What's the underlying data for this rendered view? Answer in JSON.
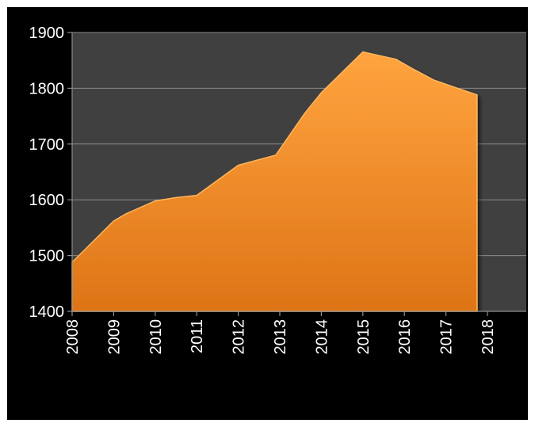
{
  "chart_data": {
    "type": "area",
    "title": "",
    "xlabel": "",
    "ylabel": "",
    "x_ticks": [
      "2008",
      "2009",
      "2010",
      "2011",
      "2012",
      "2013",
      "2014",
      "2015",
      "2016",
      "2017",
      "2018"
    ],
    "y_ticks": [
      "1400",
      "1500",
      "1600",
      "1700",
      "1800",
      "1900"
    ],
    "xlim": [
      2008,
      2018.7
    ],
    "ylim": [
      1400,
      1900
    ],
    "grid": true,
    "colors": {
      "area": "#f7922a",
      "plot_bg": "#404040",
      "background": "#000000",
      "grid": "#8c8c8c",
      "text": "#ffffff"
    },
    "series": [
      {
        "x": [
          2008.0,
          2009.0,
          2009.3,
          2010.0,
          2010.5,
          2011.0,
          2011.5,
          2012.0,
          2012.5,
          2012.9,
          2013.6,
          2014.0,
          2015.0,
          2015.8,
          2016.2,
          2016.7,
          2017.2,
          2017.75
        ],
        "values": [
          1488,
          1562,
          1575,
          1598,
          1604,
          1608,
          1635,
          1662,
          1672,
          1680,
          1755,
          1792,
          1865,
          1852,
          1835,
          1815,
          1802,
          1788
        ]
      }
    ]
  }
}
